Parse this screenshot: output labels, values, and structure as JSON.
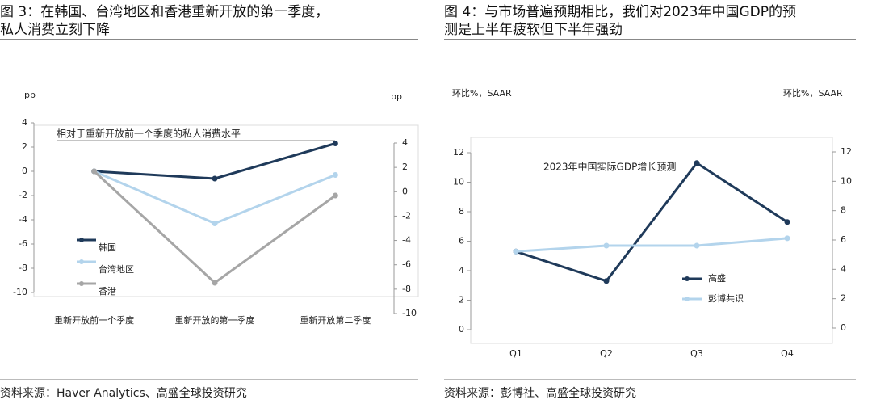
{
  "chart_data": [
    {
      "type": "line",
      "title": "图 3：在韩国、台湾地区和香港重新开放的第一季度，私人消费立刻下降",
      "y_label": "pp",
      "y2_label": "pp",
      "annotation": "相对于重新开放前一个季度的私人消费水平",
      "categories": [
        "重新开放前一个季度",
        "重新开放的第一季度",
        "重新开放第二季度"
      ],
      "series": [
        {
          "name": "韩国",
          "color": "#1f3a5a",
          "values": [
            0,
            -0.6,
            2.3
          ]
        },
        {
          "name": "台湾地区",
          "color": "#b3d4ec",
          "values": [
            0,
            -4.3,
            -0.3
          ]
        },
        {
          "name": "香港",
          "color": "#a6a6a6",
          "values": [
            0,
            -9.2,
            -2
          ]
        }
      ],
      "ylim": [
        -10,
        4
      ],
      "yticks": [
        4,
        2,
        0,
        -2,
        -4,
        -6,
        -8,
        -10
      ],
      "y2lim": [
        -10,
        4
      ],
      "y2ticks": [
        4,
        2,
        0,
        -2,
        -4,
        -6,
        -8,
        -10
      ],
      "source": "资料来源：Haver Analytics、高盛全球投资研究"
    },
    {
      "type": "line",
      "title": "图 4：与市场普遍预期相比，我们对2023年中国GDP的预测是上半年疲软但下半年强劲",
      "y_label": "环比%，SAAR",
      "y2_label": "环比%，SAAR",
      "annotation": "2023年中国实际GDP增长预测",
      "categories": [
        "Q1",
        "Q2",
        "Q3",
        "Q4"
      ],
      "series": [
        {
          "name": "高盛",
          "color": "#1f3a5a",
          "values": [
            5.3,
            3.3,
            11.3,
            7.3
          ]
        },
        {
          "name": "彭博共识",
          "color": "#b3d4ec",
          "values": [
            5.3,
            5.7,
            5.7,
            6.2
          ]
        }
      ],
      "ylim": [
        0,
        12
      ],
      "yticks": [
        0,
        2,
        4,
        6,
        8,
        10,
        12
      ],
      "y2lim": [
        0,
        12
      ],
      "y2ticks": [
        0,
        2,
        4,
        6,
        8,
        10,
        12
      ],
      "source": "资料来源：彭博社、高盛全球投资研究"
    }
  ]
}
